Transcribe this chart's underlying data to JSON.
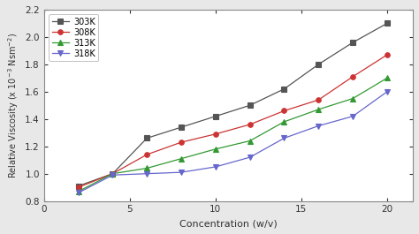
{
  "series": [
    {
      "label": "303K",
      "color": "#555555",
      "marker": "s",
      "x": [
        2,
        4,
        6,
        8,
        10,
        12,
        14,
        16,
        18,
        20
      ],
      "y": [
        0.91,
        1.0,
        1.26,
        1.34,
        1.42,
        1.5,
        1.62,
        1.8,
        1.96,
        2.1
      ]
    },
    {
      "label": "308K",
      "color": "#cc3333",
      "marker": "o",
      "x": [
        2,
        4,
        6,
        8,
        10,
        12,
        14,
        16,
        18,
        20
      ],
      "y": [
        0.9,
        1.0,
        1.14,
        1.23,
        1.29,
        1.36,
        1.46,
        1.54,
        1.71,
        1.87
      ]
    },
    {
      "label": "313K",
      "color": "#339933",
      "marker": "^",
      "x": [
        2,
        4,
        6,
        8,
        10,
        12,
        14,
        16,
        18,
        20
      ],
      "y": [
        0.87,
        1.0,
        1.04,
        1.11,
        1.18,
        1.24,
        1.38,
        1.47,
        1.55,
        1.7
      ]
    },
    {
      "label": "318K",
      "color": "#6666cc",
      "marker": "v",
      "x": [
        2,
        4,
        6,
        8,
        10,
        12,
        14,
        16,
        18,
        20
      ],
      "y": [
        0.86,
        0.99,
        1.0,
        1.01,
        1.05,
        1.12,
        1.26,
        1.35,
        1.42,
        1.6
      ]
    }
  ],
  "xlabel": "Concentration (w/v)",
  "xlim": [
    0,
    21.5
  ],
  "ylim": [
    0.8,
    2.2
  ],
  "xticks": [
    0,
    5,
    10,
    15,
    20
  ],
  "yticks": [
    0.8,
    1.0,
    1.2,
    1.4,
    1.6,
    1.8,
    2.0,
    2.2
  ],
  "legend_loc": "upper left",
  "background_color": "#ffffff",
  "fig_bg": "#e8e8e8"
}
